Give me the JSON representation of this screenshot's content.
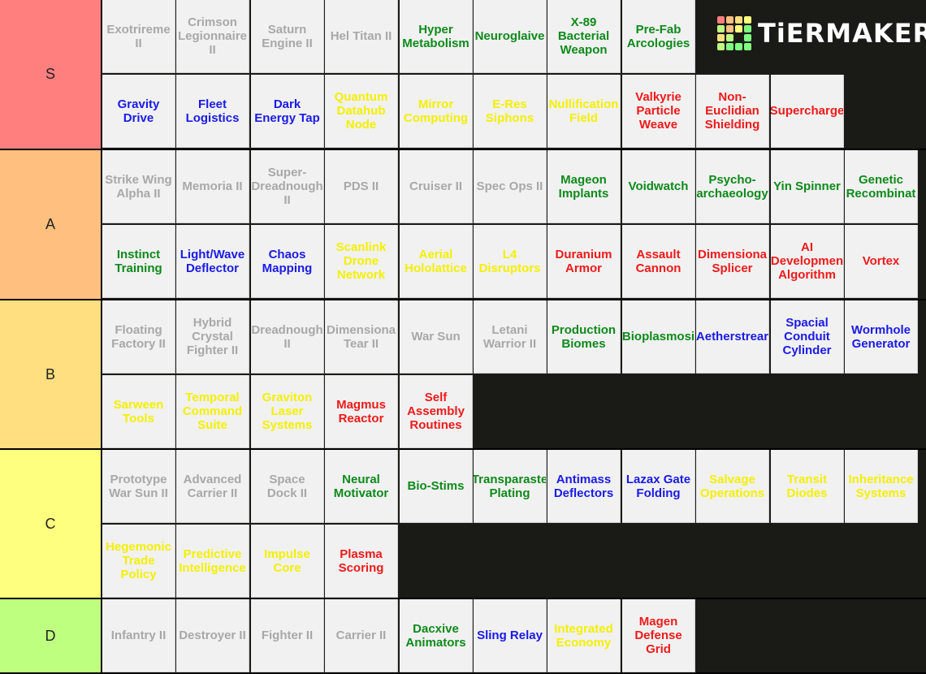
{
  "brand": {
    "name": "TiERMAKER"
  },
  "tiers": [
    {
      "label": "S",
      "color": "#ff7f7f",
      "items": [
        {
          "text": "Exotrireme\nII",
          "color": "gray"
        },
        {
          "text": "Crimson\nLegionnaire\nII",
          "color": "gray"
        },
        {
          "text": "Saturn\nEngine II",
          "color": "gray"
        },
        {
          "text": "Hel Titan II",
          "color": "gray"
        },
        {
          "text": "Hyper\nMetabolism",
          "color": "green"
        },
        {
          "text": "Neuroglaive",
          "color": "green"
        },
        {
          "text": "X-89\nBacterial\nWeapon",
          "color": "green"
        },
        {
          "text": "Pre-Fab\nArcologies",
          "color": "green"
        },
        {
          "text": "Gravity\nDrive",
          "color": "blue"
        },
        {
          "text": "Fleet\nLogistics",
          "color": "blue"
        },
        {
          "text": "Dark\nEnergy Tap",
          "color": "blue"
        },
        {
          "text": "Quantum\nDatahub\nNode",
          "color": "yellow"
        },
        {
          "text": "Mirror\nComputing",
          "color": "yellow"
        },
        {
          "text": "E-Res\nSiphons",
          "color": "yellow"
        },
        {
          "text": "Nullification\nField",
          "color": "yellow"
        },
        {
          "text": "Valkyrie\nParticle\nWeave",
          "color": "red"
        },
        {
          "text": "Non-\nEuclidian\nShielding",
          "color": "red"
        },
        {
          "text": "Supercharge",
          "color": "red"
        }
      ]
    },
    {
      "label": "A",
      "color": "#ffbf7f",
      "items": [
        {
          "text": "Strike Wing\nAlpha II",
          "color": "gray"
        },
        {
          "text": "Memoria II",
          "color": "gray"
        },
        {
          "text": "Super-\nDreadnough\nII",
          "color": "gray"
        },
        {
          "text": "PDS II",
          "color": "gray"
        },
        {
          "text": "Cruiser II",
          "color": "gray"
        },
        {
          "text": "Spec Ops II",
          "color": "gray"
        },
        {
          "text": "Mageon\nImplants",
          "color": "green"
        },
        {
          "text": "Voidwatch",
          "color": "green"
        },
        {
          "text": "Psycho-\narchaeology",
          "color": "green"
        },
        {
          "text": "Yin Spinner",
          "color": "green"
        },
        {
          "text": "Genetic\nRecombinat",
          "color": "green"
        },
        {
          "text": "Instinct\nTraining",
          "color": "green"
        },
        {
          "text": "Light/Wave\nDeflector",
          "color": "blue"
        },
        {
          "text": "Chaos\nMapping",
          "color": "blue"
        },
        {
          "text": "Scanlink\nDrone\nNetwork",
          "color": "yellow"
        },
        {
          "text": "Aerial\nHololattice",
          "color": "yellow"
        },
        {
          "text": "L4\nDisruptors",
          "color": "yellow"
        },
        {
          "text": "Duranium\nArmor",
          "color": "red"
        },
        {
          "text": "Assault\nCannon",
          "color": "red"
        },
        {
          "text": "Dimensiona\nSplicer",
          "color": "red"
        },
        {
          "text": "AI\nDevelopmen\nAlgorithm",
          "color": "red"
        },
        {
          "text": "Vortex",
          "color": "red"
        }
      ]
    },
    {
      "label": "B",
      "color": "#ffdf7f",
      "items": [
        {
          "text": "Floating\nFactory II",
          "color": "gray"
        },
        {
          "text": "Hybrid\nCrystal\nFighter II",
          "color": "gray"
        },
        {
          "text": "Dreadnough\nII",
          "color": "gray"
        },
        {
          "text": "Dimensiona\nTear II",
          "color": "gray"
        },
        {
          "text": "War Sun",
          "color": "gray"
        },
        {
          "text": "Letani\nWarrior II",
          "color": "gray"
        },
        {
          "text": "Production\nBiomes",
          "color": "green"
        },
        {
          "text": "Bioplasmosi",
          "color": "green"
        },
        {
          "text": "Aetherstrear",
          "color": "blue"
        },
        {
          "text": "Spacial\nConduit\nCylinder",
          "color": "blue"
        },
        {
          "text": "Wormhole\nGenerator",
          "color": "blue"
        },
        {
          "text": "Sarween\nTools",
          "color": "yellow"
        },
        {
          "text": "Temporal\nCommand\nSuite",
          "color": "yellow"
        },
        {
          "text": "Graviton\nLaser\nSystems",
          "color": "yellow"
        },
        {
          "text": "Magmus\nReactor",
          "color": "red"
        },
        {
          "text": "Self\nAssembly\nRoutines",
          "color": "red"
        }
      ]
    },
    {
      "label": "C",
      "color": "#ffff7f",
      "items": [
        {
          "text": "Prototype\nWar Sun II",
          "color": "gray"
        },
        {
          "text": "Advanced\nCarrier II",
          "color": "gray"
        },
        {
          "text": "Space\nDock II",
          "color": "gray"
        },
        {
          "text": "Neural\nMotivator",
          "color": "green"
        },
        {
          "text": "Bio-Stims",
          "color": "green"
        },
        {
          "text": "Transparaste\nPlating",
          "color": "green"
        },
        {
          "text": "Antimass\nDeflectors",
          "color": "blue"
        },
        {
          "text": "Lazax Gate\nFolding",
          "color": "blue"
        },
        {
          "text": "Salvage\nOperations",
          "color": "yellow"
        },
        {
          "text": "Transit\nDiodes",
          "color": "yellow"
        },
        {
          "text": "Inheritance\nSystems",
          "color": "yellow"
        },
        {
          "text": "Hegemonic\nTrade\nPolicy",
          "color": "yellow"
        },
        {
          "text": "Predictive\nIntelligence",
          "color": "yellow"
        },
        {
          "text": "Impulse\nCore",
          "color": "yellow"
        },
        {
          "text": "Plasma\nScoring",
          "color": "red"
        }
      ]
    },
    {
      "label": "D",
      "color": "#bfff7f",
      "items": [
        {
          "text": "Infantry II",
          "color": "gray"
        },
        {
          "text": "Destroyer II",
          "color": "gray"
        },
        {
          "text": "Fighter II",
          "color": "gray"
        },
        {
          "text": "Carrier II",
          "color": "gray"
        },
        {
          "text": "Dacxive\nAnimators",
          "color": "green"
        },
        {
          "text": "Sling Relay",
          "color": "blue"
        },
        {
          "text": "Integrated\nEconomy",
          "color": "yellow"
        },
        {
          "text": "Magen\nDefense\nGrid",
          "color": "red"
        }
      ]
    }
  ]
}
